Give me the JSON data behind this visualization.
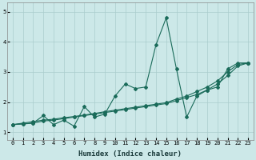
{
  "xlabel": "Humidex (Indice chaleur)",
  "bg_color": "#cce8e8",
  "grid_color": "#aacccc",
  "line_color": "#1a6b5a",
  "xlim": [
    -0.5,
    23.5
  ],
  "ylim": [
    0.75,
    5.3
  ],
  "xticks": [
    0,
    1,
    2,
    3,
    4,
    5,
    6,
    7,
    8,
    9,
    10,
    11,
    12,
    13,
    14,
    15,
    16,
    17,
    18,
    19,
    20,
    21,
    22,
    23
  ],
  "yticks": [
    1,
    2,
    3,
    4,
    5
  ],
  "series": [
    {
      "x": [
        0,
        1,
        2,
        3,
        4,
        5,
        6,
        7,
        8,
        9,
        10,
        11,
        12,
        13,
        14,
        15,
        16,
        17,
        18,
        19,
        20,
        21,
        22,
        23
      ],
      "y": [
        1.25,
        1.28,
        1.3,
        1.55,
        1.25,
        1.4,
        1.2,
        1.85,
        1.5,
        1.6,
        2.2,
        2.6,
        2.45,
        2.5,
        3.9,
        4.8,
        3.1,
        1.5,
        2.2,
        2.4,
        2.5,
        3.1,
        3.3,
        3.3
      ]
    },
    {
      "x": [
        0,
        23
      ],
      "y": [
        1.25,
        3.3
      ]
    },
    {
      "x": [
        0,
        23
      ],
      "y": [
        1.25,
        3.3
      ]
    }
  ],
  "line2": {
    "x": [
      0,
      1,
      2,
      3,
      4,
      5,
      6,
      7,
      8,
      9,
      10,
      11,
      12,
      13,
      14,
      15,
      16,
      17,
      18,
      19,
      20,
      21,
      22,
      23
    ],
    "y": [
      1.25,
      1.3,
      1.35,
      1.4,
      1.43,
      1.48,
      1.52,
      1.57,
      1.62,
      1.68,
      1.73,
      1.78,
      1.83,
      1.88,
      1.93,
      1.98,
      2.1,
      2.2,
      2.35,
      2.5,
      2.7,
      3.0,
      3.25,
      3.3
    ]
  },
  "line3": {
    "x": [
      0,
      1,
      2,
      3,
      4,
      5,
      6,
      7,
      8,
      9,
      10,
      11,
      12,
      13,
      14,
      15,
      16,
      17,
      18,
      19,
      20,
      21,
      22,
      23
    ],
    "y": [
      1.25,
      1.27,
      1.3,
      1.37,
      1.4,
      1.45,
      1.5,
      1.55,
      1.6,
      1.65,
      1.7,
      1.75,
      1.8,
      1.85,
      1.9,
      1.95,
      2.05,
      2.15,
      2.25,
      2.4,
      2.6,
      2.88,
      3.2,
      3.3
    ]
  }
}
